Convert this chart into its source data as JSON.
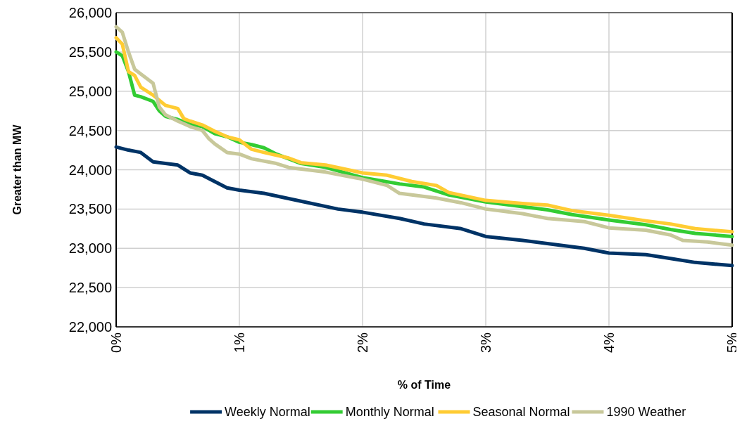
{
  "chart_data": {
    "type": "line",
    "xlabel": "% of Time",
    "ylabel": "Greater than MW",
    "xlim": [
      0,
      5
    ],
    "xticks": [
      {
        "value": 0,
        "label": "0%"
      },
      {
        "value": 1,
        "label": "1%"
      },
      {
        "value": 2,
        "label": "2%"
      },
      {
        "value": 3,
        "label": "3%"
      },
      {
        "value": 4,
        "label": "4%"
      },
      {
        "value": 5,
        "label": "5%"
      }
    ],
    "ylim": [
      22000,
      26000
    ],
    "yticks": [
      {
        "value": 22000,
        "label": "22,000"
      },
      {
        "value": 22500,
        "label": "22,500"
      },
      {
        "value": 23000,
        "label": "23,000"
      },
      {
        "value": 23500,
        "label": "23,500"
      },
      {
        "value": 24000,
        "label": "24,000"
      },
      {
        "value": 24500,
        "label": "24,500"
      },
      {
        "value": 25000,
        "label": "25,000"
      },
      {
        "value": 25500,
        "label": "25,500"
      },
      {
        "value": 26000,
        "label": "26,000"
      }
    ],
    "grid": true,
    "legend": "bottom",
    "marker": "none",
    "line_style": "solid",
    "series": [
      {
        "name": "Weekly Normal",
        "color": "#003366",
        "x": [
          0,
          0.1,
          0.2,
          0.3,
          0.4,
          0.5,
          0.6,
          0.7,
          0.8,
          0.9,
          1.0,
          1.2,
          1.5,
          1.8,
          2.0,
          2.3,
          2.5,
          2.8,
          3.0,
          3.3,
          3.5,
          3.8,
          4.0,
          4.3,
          4.5,
          4.7,
          5.0
        ],
        "values": [
          24290,
          24250,
          24220,
          24100,
          24080,
          24060,
          23960,
          23930,
          23850,
          23770,
          23740,
          23700,
          23600,
          23500,
          23460,
          23380,
          23310,
          23250,
          23150,
          23100,
          23060,
          23000,
          22940,
          22920,
          22870,
          22820,
          22780
        ]
      },
      {
        "name": "Monthly Normal",
        "color": "#33cc33",
        "x": [
          0,
          0.05,
          0.1,
          0.15,
          0.2,
          0.3,
          0.35,
          0.4,
          0.5,
          0.6,
          0.7,
          0.8,
          0.9,
          1.0,
          1.1,
          1.2,
          1.3,
          1.5,
          1.7,
          2.0,
          2.3,
          2.5,
          2.7,
          3.0,
          3.3,
          3.5,
          3.7,
          4.0,
          4.3,
          4.5,
          4.7,
          5.0
        ],
        "values": [
          25500,
          25450,
          25250,
          24950,
          24930,
          24870,
          24750,
          24680,
          24640,
          24580,
          24550,
          24460,
          24420,
          24350,
          24320,
          24280,
          24200,
          24080,
          24030,
          23900,
          23820,
          23780,
          23680,
          23590,
          23530,
          23490,
          23430,
          23360,
          23300,
          23240,
          23190,
          23150
        ]
      },
      {
        "name": "Seasonal Normal",
        "color": "#ffcc33",
        "x": [
          0,
          0.05,
          0.1,
          0.15,
          0.2,
          0.25,
          0.3,
          0.4,
          0.5,
          0.55,
          0.6,
          0.7,
          0.8,
          0.9,
          1.0,
          1.1,
          1.2,
          1.4,
          1.5,
          1.7,
          2.0,
          2.2,
          2.4,
          2.6,
          2.7,
          3.0,
          3.3,
          3.5,
          3.7,
          4.0,
          4.3,
          4.5,
          4.7,
          5.0
        ],
        "values": [
          25680,
          25600,
          25250,
          25200,
          25050,
          25000,
          24950,
          24820,
          24780,
          24650,
          24620,
          24570,
          24490,
          24420,
          24380,
          24260,
          24220,
          24150,
          24090,
          24060,
          23960,
          23930,
          23850,
          23800,
          23710,
          23610,
          23570,
          23550,
          23480,
          23420,
          23350,
          23310,
          23250,
          23210
        ]
      },
      {
        "name": "1990 Weather",
        "color": "#c8c89a",
        "x": [
          0,
          0.05,
          0.1,
          0.15,
          0.2,
          0.3,
          0.35,
          0.4,
          0.5,
          0.6,
          0.7,
          0.75,
          0.8,
          0.9,
          1.0,
          1.1,
          1.3,
          1.4,
          1.7,
          2.0,
          2.2,
          2.3,
          2.6,
          2.8,
          3.0,
          3.3,
          3.5,
          3.8,
          4.0,
          4.3,
          4.5,
          4.6,
          4.8,
          5.0
        ],
        "values": [
          25820,
          25750,
          25500,
          25280,
          25220,
          25100,
          24800,
          24700,
          24620,
          24550,
          24500,
          24400,
          24330,
          24220,
          24200,
          24140,
          24080,
          24030,
          23970,
          23880,
          23800,
          23700,
          23640,
          23580,
          23500,
          23440,
          23380,
          23340,
          23260,
          23230,
          23170,
          23100,
          23080,
          23040
        ]
      }
    ]
  }
}
